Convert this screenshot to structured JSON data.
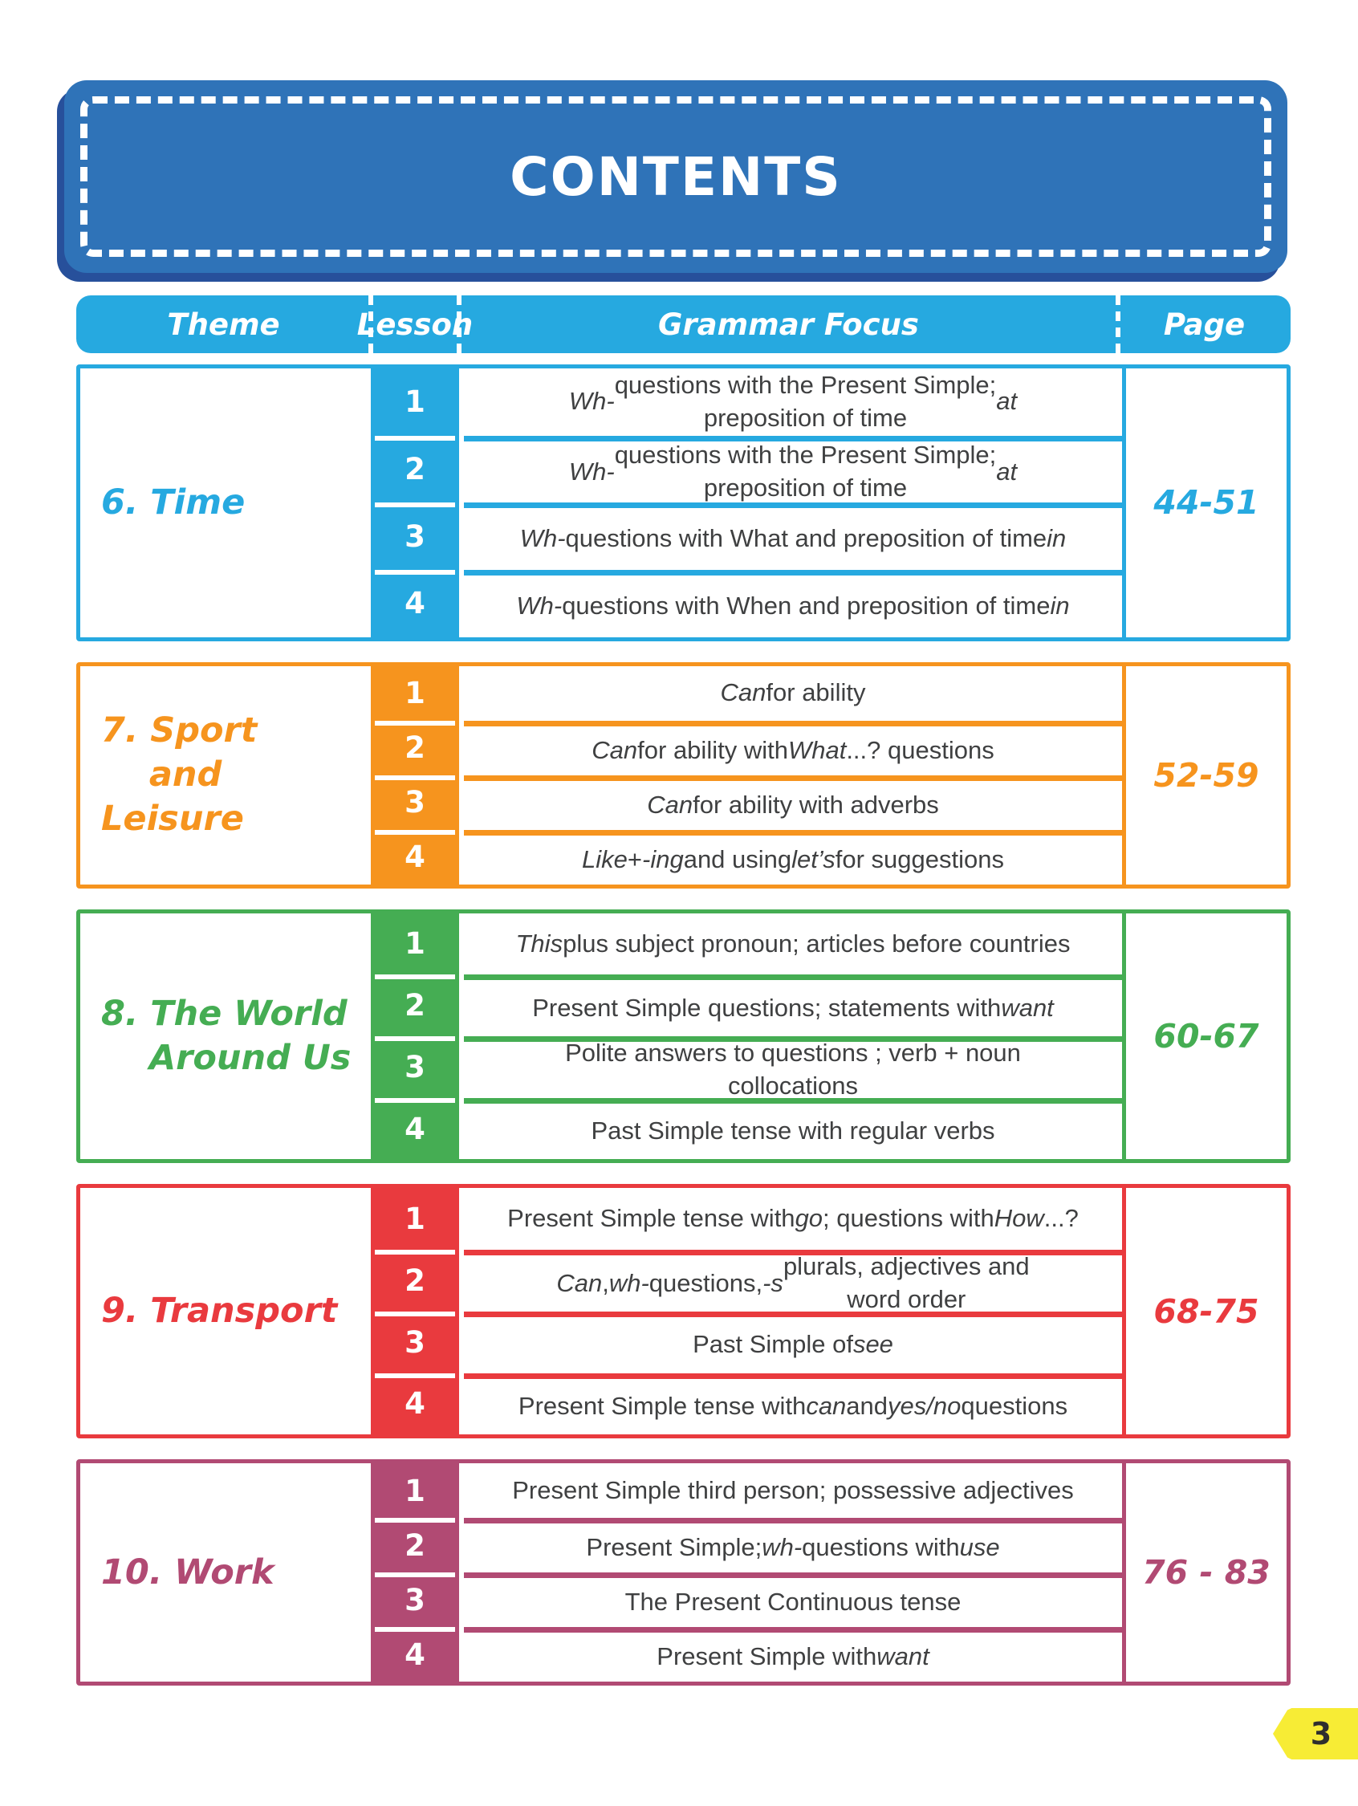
{
  "banner": {
    "title": "CONTENTS"
  },
  "columns": {
    "theme": "Theme",
    "lesson": "Lesson",
    "grammar": "Grammar Focus",
    "page": "Page"
  },
  "sections": [
    {
      "id": "time",
      "color": "#26a9e0",
      "theme": "6. Time",
      "pages": "44-51",
      "lessons": [
        {
          "number": "1",
          "grammar": "*Wh-* questions with the Present Simple;\npreposition of time *at*"
        },
        {
          "number": "2",
          "grammar": "*Wh-* questions with the Present Simple;\npreposition of time *at*"
        },
        {
          "number": "3",
          "grammar": "*Wh-* questions with What and preposition of time *in*"
        },
        {
          "number": "4",
          "grammar": "*Wh-* questions with When and preposition of time *in*"
        }
      ]
    },
    {
      "id": "sport-and-leisure",
      "color": "#f6941e",
      "theme": "7. Sport\n    and Leisure",
      "pages": "52-59",
      "lessons": [
        {
          "number": "1",
          "grammar": "*Can* for ability"
        },
        {
          "number": "2",
          "grammar": "*Can* for ability with *What* ...? questions"
        },
        {
          "number": "3",
          "grammar": "*Can* for ability with adverbs"
        },
        {
          "number": "4",
          "grammar": "*Like* + *-ing* and using *let’s* for suggestions"
        }
      ]
    },
    {
      "id": "the-world-around-us",
      "color": "#45ad53",
      "theme": "8. The World\n    Around Us",
      "pages": "60-67",
      "lessons": [
        {
          "number": "1",
          "grammar": "*This* plus subject pronoun; articles before countries"
        },
        {
          "number": "2",
          "grammar": "Present Simple questions; statements with *want*"
        },
        {
          "number": "3",
          "grammar": "Polite answers to questions ; verb + noun\ncollocations"
        },
        {
          "number": "4",
          "grammar": "Past Simple tense with regular verbs"
        }
      ]
    },
    {
      "id": "transport",
      "color": "#e93a3e",
      "theme": "9. Transport",
      "pages": "68-75",
      "lessons": [
        {
          "number": "1",
          "grammar": "Present Simple tense with *go*; questions with\n*How* ...?"
        },
        {
          "number": "2",
          "grammar": "*Can*, *wh-* questions, *-s* plurals, adjectives and\nword order"
        },
        {
          "number": "3",
          "grammar": "Past Simple of *see*"
        },
        {
          "number": "4",
          "grammar": "Present Simple tense with *can* and\n*yes/no* questions"
        }
      ]
    },
    {
      "id": "work",
      "color": "#b14a73",
      "theme": "10. Work",
      "pages": "76 - 83",
      "lessons": [
        {
          "number": "1",
          "grammar": "Present Simple third person; possessive adjectives"
        },
        {
          "number": "2",
          "grammar": "Present Simple; *wh-* questions with *use*"
        },
        {
          "number": "3",
          "grammar": "The Present Continuous tense"
        },
        {
          "number": "4",
          "grammar": "Present Simple with *want*"
        }
      ]
    }
  ],
  "page_tab": {
    "number": "3"
  },
  "colors": {
    "banner": "#2f73b8",
    "banner_shadow": "#27509b",
    "header": "#26a9e0",
    "tab": "#f7ec35",
    "grammar_text": "#3f4041"
  }
}
